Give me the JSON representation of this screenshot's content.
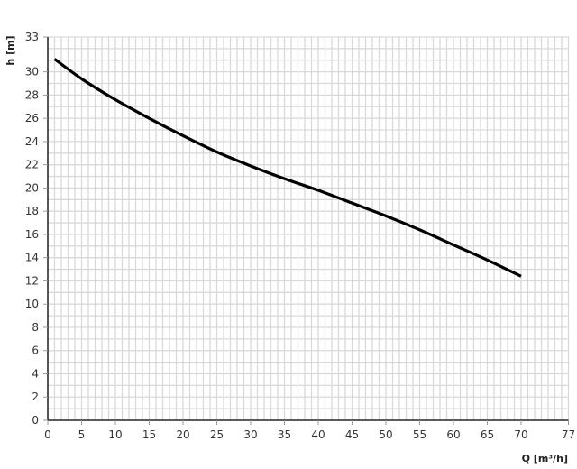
{
  "chart_data": {
    "type": "line",
    "title": "",
    "xlabel": "Q [m³/h]",
    "ylabel": "h [m]",
    "xlim": [
      0,
      77
    ],
    "ylim": [
      0,
      33
    ],
    "x_ticks": [
      "0",
      "5",
      "10",
      "15",
      "20",
      "25",
      "30",
      "35",
      "40",
      "45",
      "50",
      "55",
      "60",
      "65",
      "70",
      "77"
    ],
    "y_ticks": [
      "0",
      "2",
      "4",
      "6",
      "8",
      "10",
      "12",
      "14",
      "16",
      "18",
      "20",
      "22",
      "24",
      "26",
      "28",
      "30",
      "33"
    ],
    "grid": true,
    "grid_step": {
      "x": 1,
      "y": 1
    },
    "colors": {
      "line": "#000000",
      "grid": "#d9d9d9",
      "axis": "#000000"
    },
    "series": [
      {
        "x": [
          1,
          5,
          10,
          15,
          20,
          25,
          30,
          35,
          40,
          45,
          50,
          55,
          60,
          65,
          70
        ],
        "y": [
          31.1,
          29.4,
          27.6,
          26.0,
          24.5,
          23.1,
          21.9,
          20.8,
          19.8,
          18.7,
          17.6,
          16.4,
          15.1,
          13.8,
          12.4
        ]
      }
    ]
  }
}
